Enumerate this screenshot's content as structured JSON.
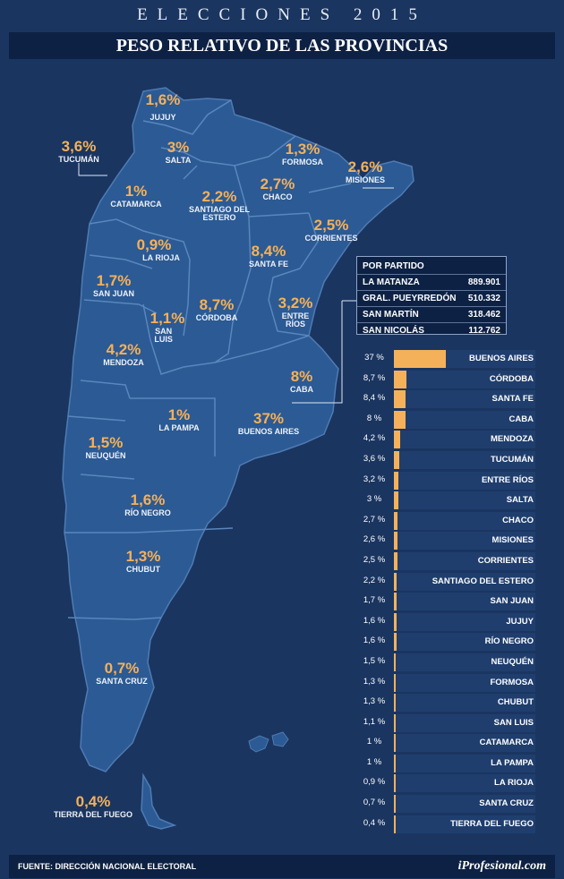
{
  "header": {
    "title": "ELECCIONES 2015",
    "subtitle": "PESO RELATIVO DE LAS PROVINCIAS"
  },
  "chart_data": {
    "type": "bar",
    "title": "PESO RELATIVO DE LAS PROVINCIAS",
    "unit": "%",
    "xlim": [
      0,
      100
    ],
    "categories": [
      "BUENOS AIRES",
      "CÓRDOBA",
      "SANTA FE",
      "CABA",
      "MENDOZA",
      "TUCUMÁN",
      "ENTRE RÍOS",
      "SALTA",
      "CHACO",
      "MISIONES",
      "CORRIENTES",
      "SANTIAGO DEL ESTERO",
      "SAN JUAN",
      "JUJUY",
      "RÍO NEGRO",
      "NEUQUÉN",
      "FORMOSA",
      "CHUBUT",
      "SAN LUIS",
      "CATAMARCA",
      "LA PAMPA",
      "LA RIOJA",
      "SANTA CRUZ",
      "TIERRA DEL FUEGO"
    ],
    "values": [
      37,
      8.7,
      8.4,
      8,
      4.2,
      3.6,
      3.2,
      3,
      2.7,
      2.6,
      2.5,
      2.2,
      1.7,
      1.6,
      1.6,
      1.5,
      1.3,
      1.3,
      1.1,
      1,
      1,
      0.9,
      0.7,
      0.4
    ],
    "value_labels": [
      "37 %",
      "8,7 %",
      "8,4 %",
      "8 %",
      "4,2 %",
      "3,6 %",
      "3,2 %",
      "3 %",
      "2,7 %",
      "2,6 %",
      "2,5 %",
      "2,2 %",
      "1,7 %",
      "1,6 %",
      "1,6 %",
      "1,5 %",
      "1,3 %",
      "1,3 %",
      "1,1 %",
      "1 %",
      "1 %",
      "0,9 %",
      "0,7 %",
      "0,4 %"
    ],
    "bar_color": "#f5b15a"
  },
  "map_labels": [
    {
      "pct": "1,6%",
      "name": "JUJUY"
    },
    {
      "pct": "3,6%",
      "name": "TUCUMÁN"
    },
    {
      "pct": "3%",
      "name": "SALTA"
    },
    {
      "pct": "1,3%",
      "name": "FORMOSA"
    },
    {
      "pct": "2,6%",
      "name": "MISIONES"
    },
    {
      "pct": "1%",
      "name": "CATAMARCA"
    },
    {
      "pct": "2,2%",
      "name": "SANTIAGO DEL ESTERO"
    },
    {
      "pct": "2,7%",
      "name": "CHACO"
    },
    {
      "pct": "2,5%",
      "name": "CORRIENTES"
    },
    {
      "pct": "0,9%",
      "name": "LA RIOJA"
    },
    {
      "pct": "8,4%",
      "name": "SANTA FE"
    },
    {
      "pct": "1,7%",
      "name": "SAN JUAN"
    },
    {
      "pct": "8,7%",
      "name": "CÓRDOBA"
    },
    {
      "pct": "1,1%",
      "name": "SAN LUIS"
    },
    {
      "pct": "3,2%",
      "name": "ENTRE RÍOS"
    },
    {
      "pct": "4,2%",
      "name": "MENDOZA"
    },
    {
      "pct": "8%",
      "name": "CABA"
    },
    {
      "pct": "1%",
      "name": "LA PAMPA"
    },
    {
      "pct": "37%",
      "name": "BUENOS AIRES"
    },
    {
      "pct": "1,5%",
      "name": "NEUQUÉN"
    },
    {
      "pct": "1,6%",
      "name": "RÍO NEGRO"
    },
    {
      "pct": "1,3%",
      "name": "CHUBUT"
    },
    {
      "pct": "0,7%",
      "name": "SANTA CRUZ"
    },
    {
      "pct": "0,4%",
      "name": "TIERRA DEL FUEGO"
    }
  ],
  "por_partido": {
    "title": "POR PARTIDO",
    "rows": [
      {
        "name": "LA MATANZA",
        "value": "889.901"
      },
      {
        "name": "GRAL. PUEYRREDÓN",
        "value": "510.332"
      },
      {
        "name": "SAN MARTÍN",
        "value": "318.462"
      },
      {
        "name": "SAN NICOLÁS",
        "value": "112.762"
      }
    ]
  },
  "footer": {
    "source": "FUENTE: DIRECCIÓN NACIONAL ELECTORAL",
    "logo": "iProfesional.com"
  },
  "colors": {
    "background": "#1a3560",
    "map_fill": "#2b5a94",
    "accent": "#f5b15a",
    "panel": "#0d2144"
  }
}
